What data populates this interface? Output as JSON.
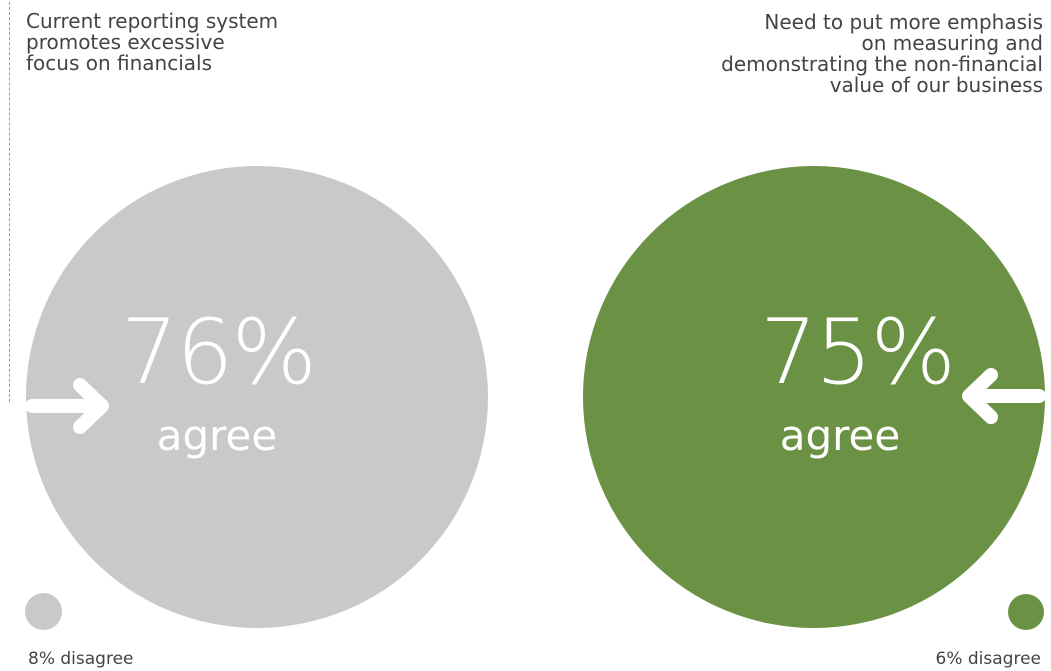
{
  "left_panel": {
    "heading_lines": [
      "Current reporting system",
      "promotes excessive",
      "focus on financials"
    ],
    "agree_value": "76%",
    "agree_label": "agree",
    "disagree_text": "8% disagree",
    "color": "#c8c9cb"
  },
  "right_panel": {
    "heading_lines": [
      "Need to put more emphasis",
      "on measuring and",
      "demonstrating the non-financial",
      "value of our business"
    ],
    "agree_value": "75%",
    "agree_label": "agree",
    "disagree_text": "6% disagree",
    "color": "#6a9144"
  },
  "chart_data": {
    "type": "bubble",
    "items": [
      {
        "label": "Current reporting system promotes excessive focus on financials",
        "agree": 76,
        "disagree": 8,
        "color": "#c8c9cb"
      },
      {
        "label": "Need to put more emphasis on measuring and demonstrating the non-financial value of our business",
        "agree": 75,
        "disagree": 6,
        "color": "#6a9144"
      }
    ]
  }
}
